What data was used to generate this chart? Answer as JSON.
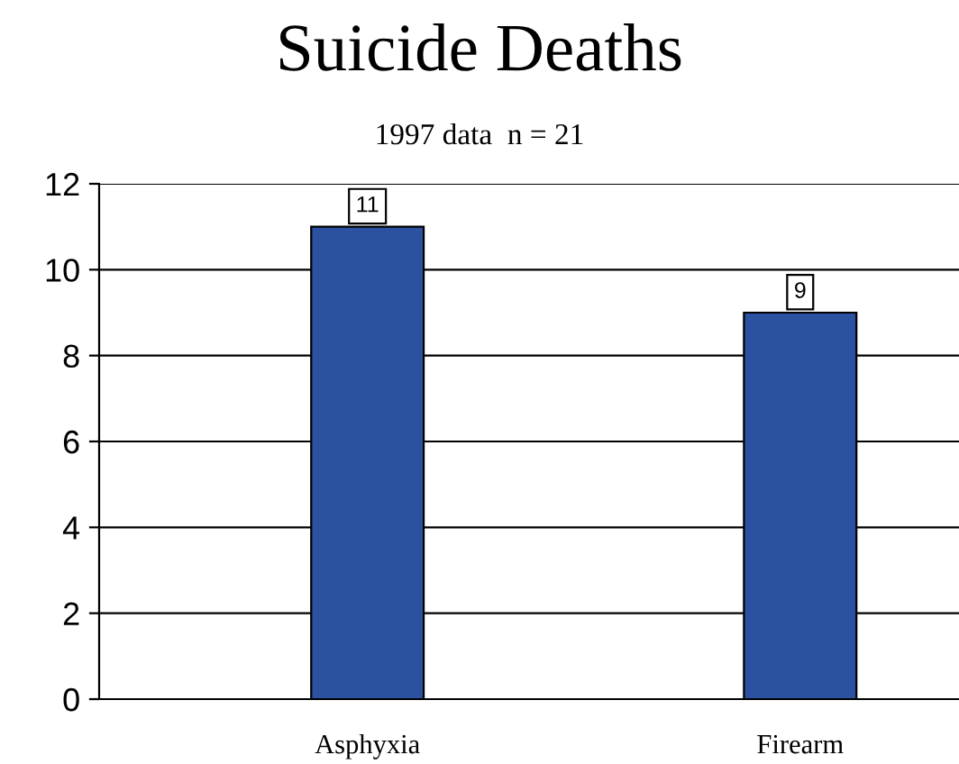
{
  "chart_data": {
    "type": "bar",
    "title": "Suicide Deaths",
    "subtitle": "1997 data  n = 21",
    "categories": [
      "Asphyxia",
      "Firearm"
    ],
    "values": [
      11,
      9
    ],
    "color": "#2a52a0",
    "ylim": [
      0,
      12
    ],
    "yticks": [
      0,
      2,
      4,
      6,
      8,
      10,
      12
    ],
    "grid": "y",
    "data_labels": true
  }
}
